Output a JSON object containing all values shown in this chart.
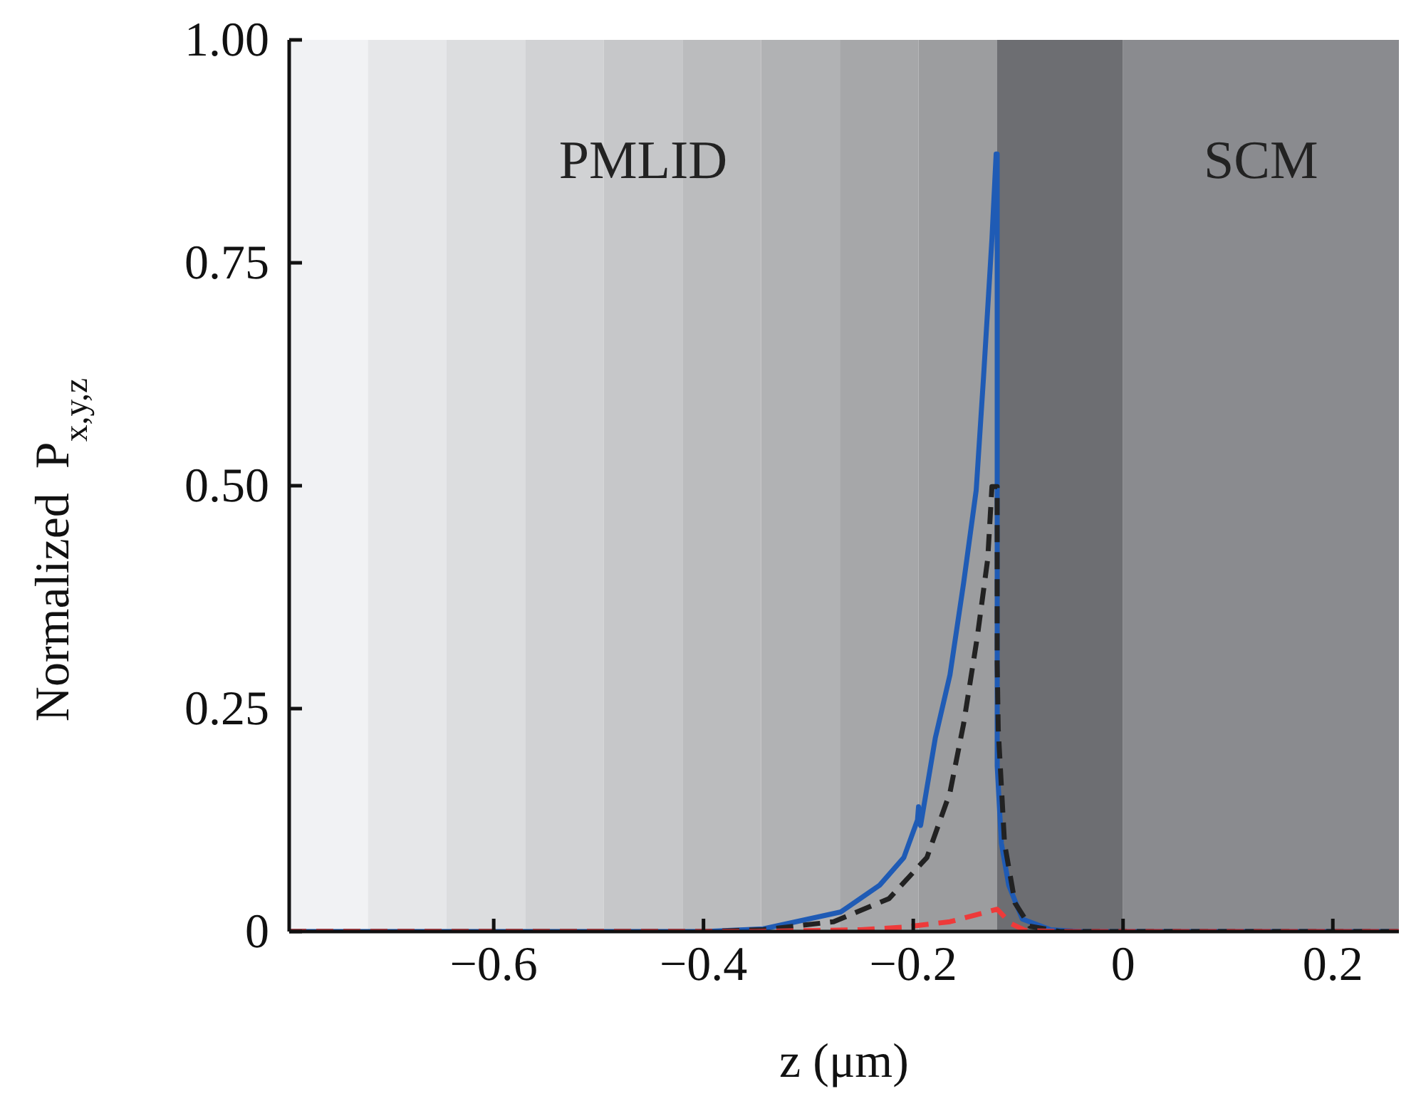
{
  "chart_data": {
    "type": "line",
    "xlabel": "z (μm)",
    "ylabel": "Normalized  P$_{x,y,z}$",
    "xlim": [
      -0.795,
      0.263
    ],
    "ylim": [
      0,
      1
    ],
    "xticks": [
      {
        "value": -0.6,
        "label": "−0.6"
      },
      {
        "value": -0.4,
        "label": "−0.4"
      },
      {
        "value": -0.2,
        "label": "−0.2"
      },
      0,
      0.2
    ],
    "yticks": [
      0,
      0.25,
      {
        "value": 0.5,
        "label": "0.50"
      },
      0.75,
      {
        "value": 1,
        "label": "1.00"
      }
    ],
    "grid": false,
    "marker": "none",
    "bands": [
      {
        "axis": "x",
        "from": -0.795,
        "to": -0.72,
        "color": "#f1f2f4"
      },
      {
        "axis": "x",
        "from": -0.72,
        "to": -0.645,
        "color": "#e6e7e9"
      },
      {
        "axis": "x",
        "from": -0.645,
        "to": -0.57,
        "color": "#dcdddf"
      },
      {
        "axis": "x",
        "from": -0.57,
        "to": -0.495,
        "color": "#d1d2d4"
      },
      {
        "axis": "x",
        "from": -0.495,
        "to": -0.42,
        "color": "#c6c7c9",
        "label": "PMLID"
      },
      {
        "axis": "x",
        "from": -0.42,
        "to": -0.345,
        "color": "#bbbcbe"
      },
      {
        "axis": "x",
        "from": -0.345,
        "to": -0.27,
        "color": "#b1b2b4"
      },
      {
        "axis": "x",
        "from": -0.27,
        "to": -0.195,
        "color": "#a6a7a9"
      },
      {
        "axis": "x",
        "from": -0.195,
        "to": -0.12,
        "color": "#9c9d9f"
      },
      {
        "axis": "x",
        "from": -0.12,
        "to": 0,
        "color": "#6d6e72"
      },
      {
        "axis": "x",
        "from": 0,
        "to": 0.263,
        "color": "#8a8b8f",
        "label": "SCM"
      }
    ],
    "series": [
      {
        "color": "#1f5bb5",
        "line_style": "solid",
        "x": [
          -0.795,
          -0.4,
          -0.343,
          -0.269,
          -0.232,
          -0.209,
          -0.196,
          -0.195,
          -0.193,
          -0.179,
          -0.165,
          -0.152,
          -0.14,
          -0.133,
          -0.125,
          -0.121,
          -0.12,
          -0.12,
          -0.116,
          -0.109,
          -0.096,
          -0.069,
          -0.04,
          0.263
        ],
        "values": [
          0,
          0,
          0.003,
          0.022,
          0.052,
          0.083,
          0.125,
          0.14,
          0.119,
          0.217,
          0.288,
          0.391,
          0.495,
          0.622,
          0.777,
          0.872,
          0.872,
          0.186,
          0.099,
          0.052,
          0.014,
          0.002,
          0,
          0
        ]
      },
      {
        "color": "#222222",
        "line_style": "dashed",
        "x": [
          -0.795,
          -0.4,
          -0.343,
          -0.276,
          -0.223,
          -0.187,
          -0.165,
          -0.152,
          -0.139,
          -0.129,
          -0.125,
          -0.12,
          -0.12,
          -0.119,
          -0.113,
          -0.103,
          -0.089,
          -0.06,
          0.263
        ],
        "values": [
          0,
          0,
          0.002,
          0.011,
          0.037,
          0.083,
          0.156,
          0.233,
          0.33,
          0.418,
          0.499,
          0.499,
          0.3,
          0.227,
          0.099,
          0.032,
          0.006,
          0,
          0
        ]
      },
      {
        "color": "#ee3a3a",
        "line_style": "dashed",
        "x": [
          -0.795,
          -0.35,
          -0.25,
          -0.209,
          -0.165,
          -0.12,
          -0.107,
          -0.093,
          -0.06,
          0.263
        ],
        "values": [
          0,
          0,
          0.002,
          0.005,
          0.011,
          0.025,
          0.009,
          0.001,
          0,
          0
        ]
      }
    ]
  }
}
